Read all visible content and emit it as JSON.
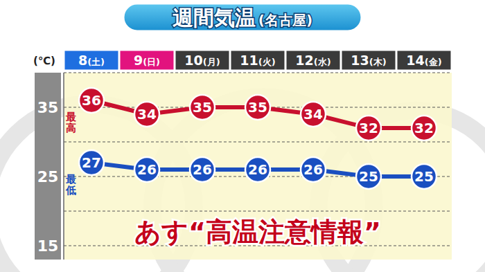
{
  "chart_data": {
    "type": "line",
    "title": "週間気温",
    "subtitle": "(名古屋)",
    "y_label": "(℃)",
    "categories": [
      "8(土)",
      "9(日)",
      "10(月)",
      "11(火)",
      "12(水)",
      "13(木)",
      "14(金)"
    ],
    "series": [
      {
        "name": "最高",
        "color": "#c8102e",
        "values": [
          36,
          34,
          35,
          35,
          34,
          32,
          32
        ]
      },
      {
        "name": "最低",
        "color": "#1a4fc0",
        "values": [
          27,
          26,
          26,
          26,
          26,
          25,
          25
        ]
      }
    ],
    "ylim": [
      13,
      40
    ],
    "yticks": [
      15,
      25,
      35
    ],
    "grid": true,
    "data_labels": true,
    "legend": "left",
    "marker": "circle",
    "annotation": "あす“高温注意情報”"
  }
}
